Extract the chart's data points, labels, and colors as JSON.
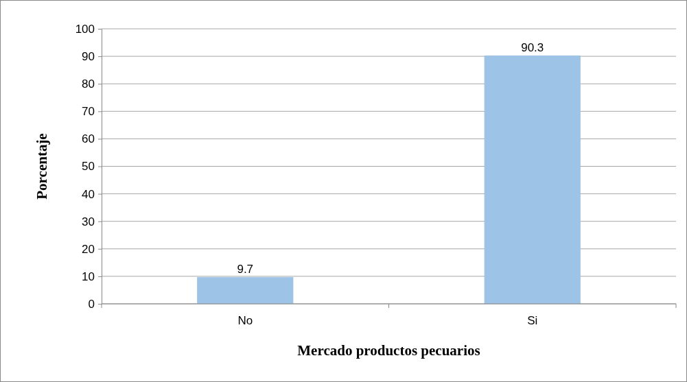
{
  "chart_data": {
    "type": "bar",
    "xlabel": "Mercado productos pecuarios",
    "ylabel": "Porcentaje",
    "categories": [
      "No",
      "Si"
    ],
    "values": [
      9.7,
      90.3
    ],
    "color": "#9dc3e6",
    "ylim": [
      0,
      100
    ],
    "yticks": [
      0,
      10,
      20,
      30,
      40,
      50,
      60,
      70,
      80,
      90,
      100
    ],
    "grid": "y",
    "data_labels": true
  }
}
